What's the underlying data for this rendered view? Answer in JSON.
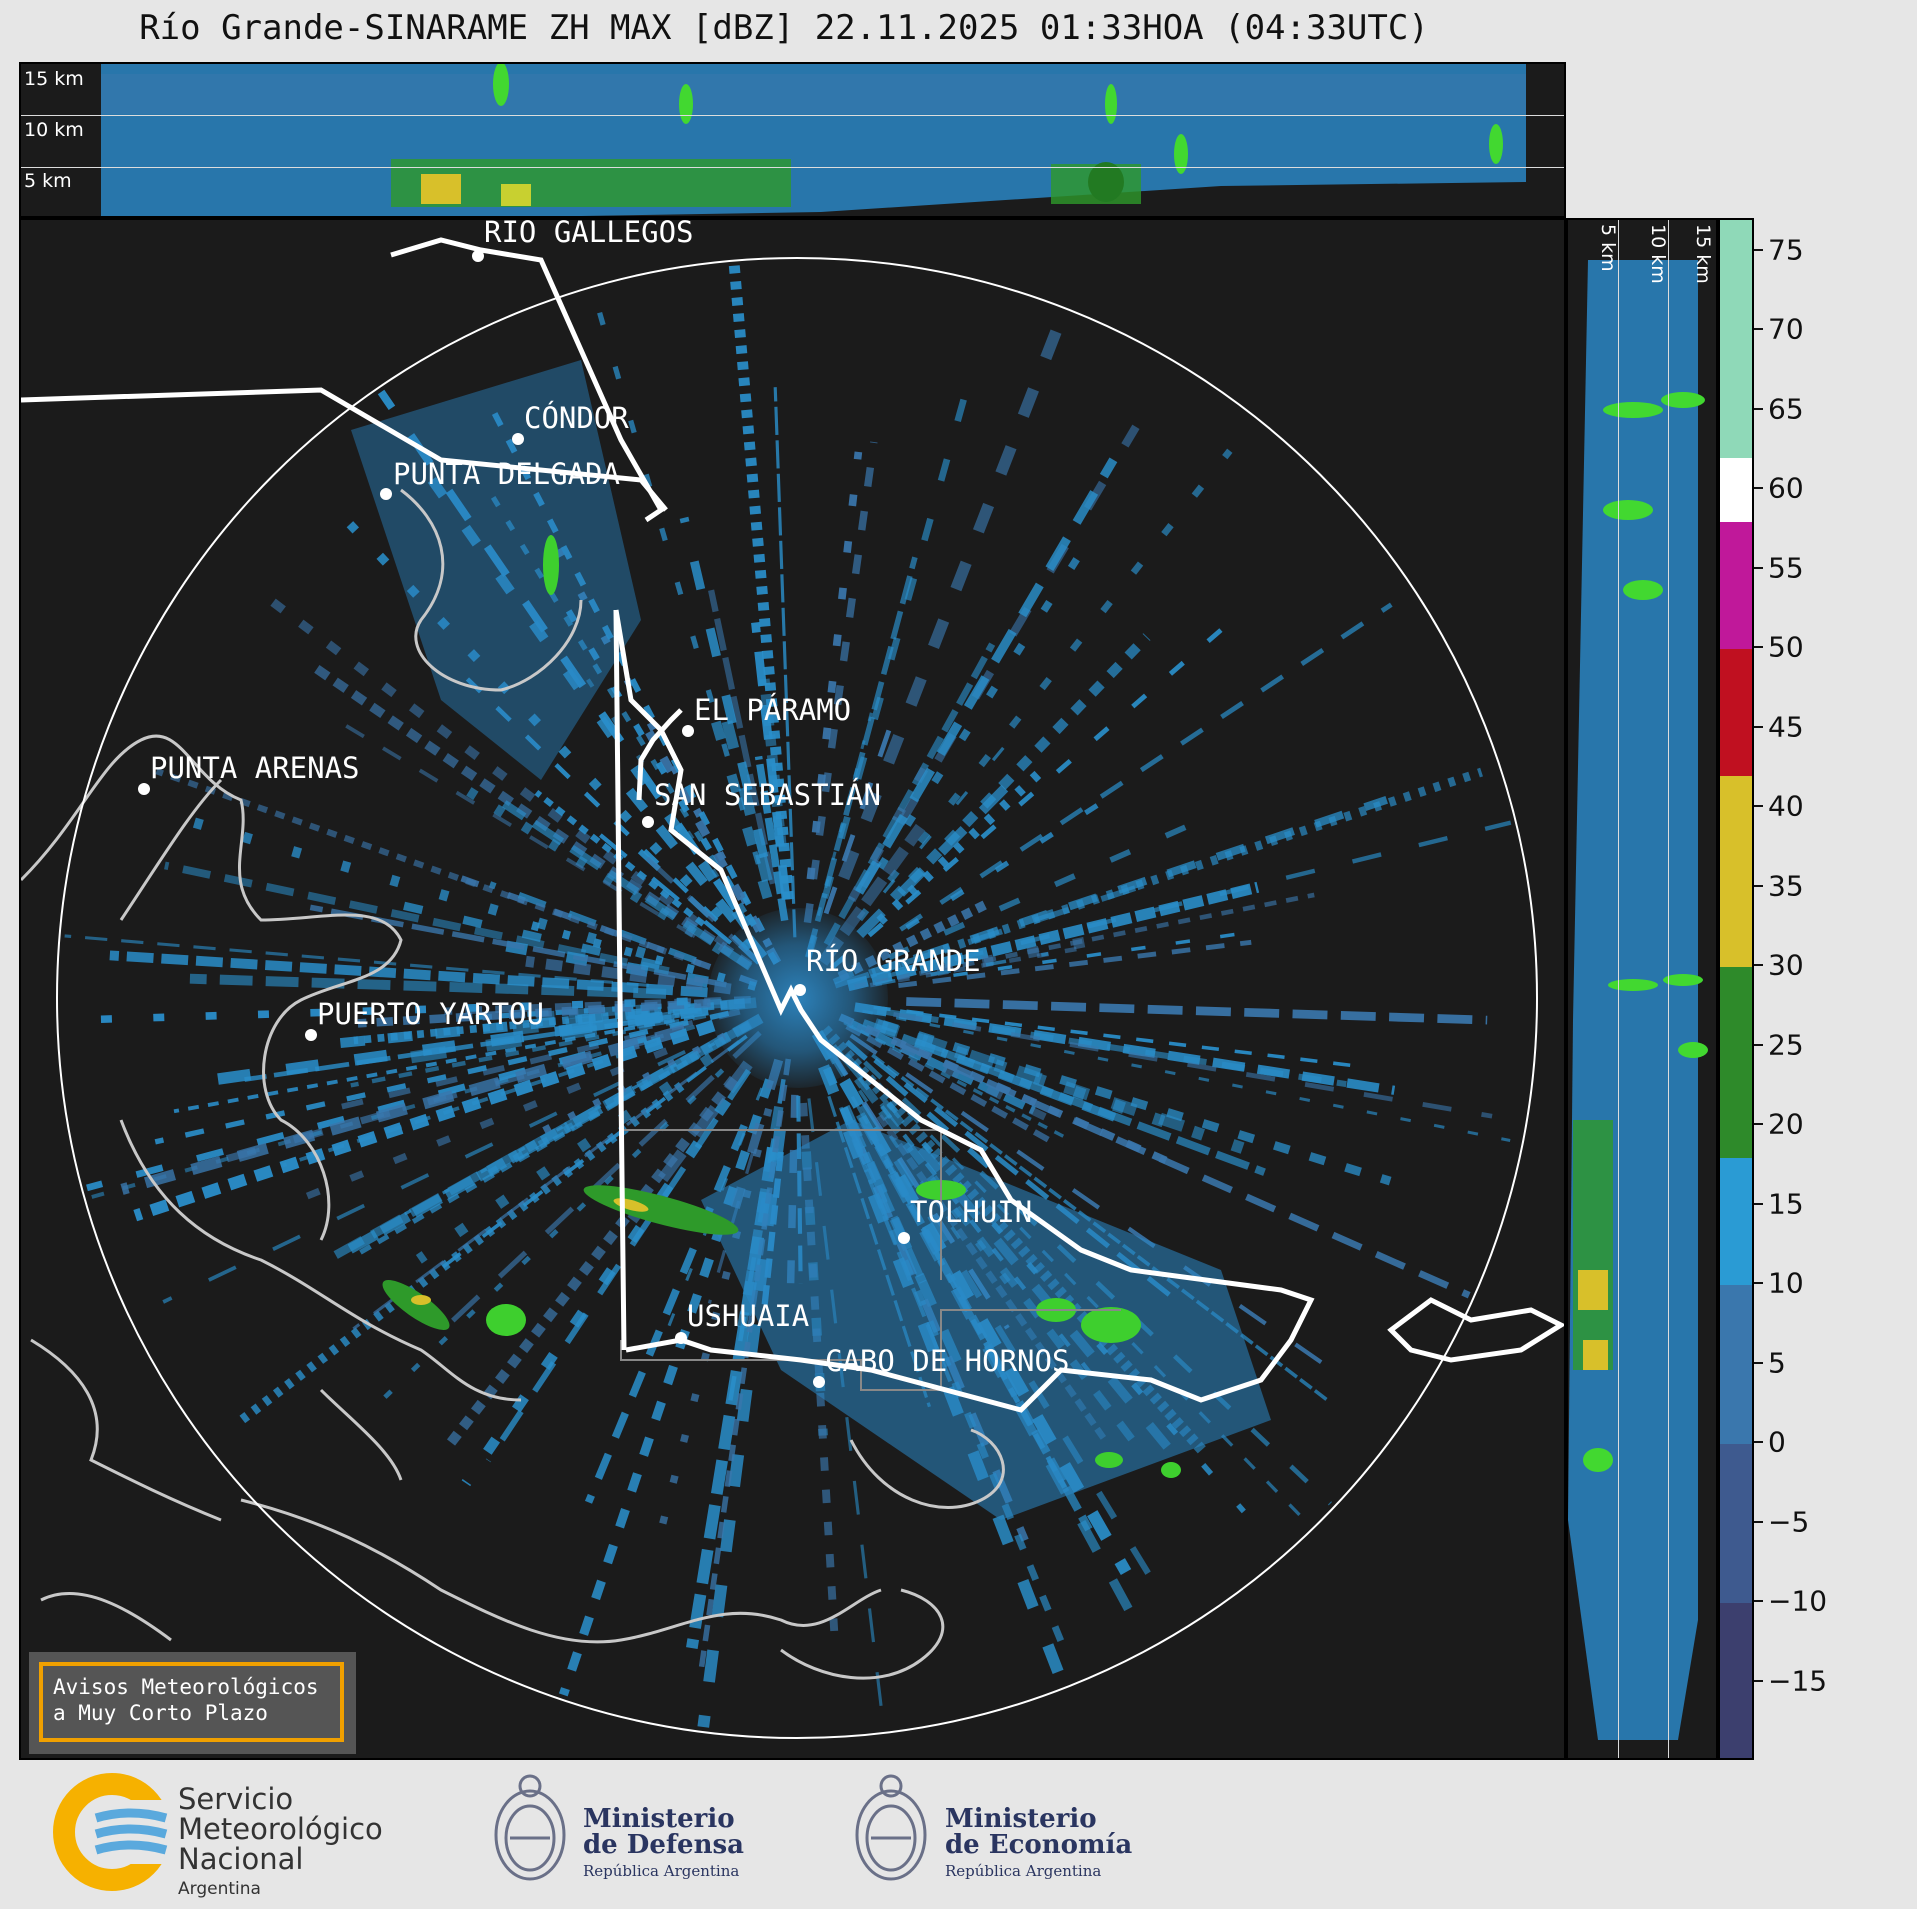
{
  "title": "Río Grande-SINARAME ZH MAX [dBZ] 22.11.2025 01:33HOA (04:33UTC)",
  "top_panel": {
    "height_labels": [
      "15 km",
      "10 km",
      "5 km"
    ]
  },
  "side_panel": {
    "height_labels": [
      "5 km",
      "10 km",
      "15 km"
    ]
  },
  "cities": [
    {
      "id": "rio-gallegos",
      "name": "RÍO GALLEGOS"
    },
    {
      "id": "condor",
      "name": "CÓNDOR"
    },
    {
      "id": "punta-delgada",
      "name": "PUNTA DELGADA"
    },
    {
      "id": "el-paramo",
      "name": "EL PÁRAMO"
    },
    {
      "id": "punta-arenas",
      "name": "PUNTA ARENAS"
    },
    {
      "id": "san-sebastian",
      "name": "SAN SEBASTIÁN"
    },
    {
      "id": "rio-grande",
      "name": "RÍO GRANDE"
    },
    {
      "id": "puerto-yartou",
      "name": "PUERTO YARTOU"
    },
    {
      "id": "tolhuin",
      "name": "TOLHUIN"
    },
    {
      "id": "ushuaia",
      "name": "USHUAIA"
    },
    {
      "id": "cabo-de-hornos",
      "name": "CABO DE HORNOS"
    }
  ],
  "colorbar": {
    "unit": "dBZ",
    "range": [
      -20,
      77
    ],
    "ticks": [
      "75",
      "70",
      "65",
      "60",
      "55",
      "50",
      "45",
      "40",
      "35",
      "30",
      "25",
      "20",
      "15",
      "10",
      "5",
      "0",
      "−5",
      "−10",
      "−15"
    ],
    "tick_values": [
      75,
      70,
      65,
      60,
      55,
      50,
      45,
      40,
      35,
      30,
      25,
      20,
      15,
      10,
      5,
      0,
      -5,
      -10,
      -15
    ],
    "colors": [
      {
        "from": -20,
        "to": -10,
        "color": "#3c3f6e"
      },
      {
        "from": -10,
        "to": 0,
        "color": "#3e5a8f"
      },
      {
        "from": 0,
        "to": 10,
        "color": "#3a77ad"
      },
      {
        "from": 10,
        "to": 18,
        "color": "#2a9bd4"
      },
      {
        "from": 18,
        "to": 30,
        "color": "#2e8a2a"
      },
      {
        "from": 30,
        "to": 42,
        "color": "#d8c02a"
      },
      {
        "from": 42,
        "to": 50,
        "color": "#c01020"
      },
      {
        "from": 50,
        "to": 58,
        "color": "#c0189a"
      },
      {
        "from": 58,
        "to": 62,
        "color": "#ffffff"
      },
      {
        "from": 62,
        "to": 77,
        "color": "#8fd9b8"
      }
    ]
  },
  "alert_box": {
    "line1": "Avisos Meteorológicos",
    "line2": "a Muy Corto Plazo"
  },
  "logos": {
    "smn": {
      "line1": "Servicio",
      "line2": "Meteorológico",
      "line3": "Nacional",
      "line4": "Argentina"
    },
    "defensa": {
      "line1": "Ministerio",
      "line2": "de Defensa",
      "line3": "República Argentina"
    },
    "economia": {
      "line1": "Ministerio",
      "line2": "de Economía",
      "line3": "República Argentina"
    }
  }
}
